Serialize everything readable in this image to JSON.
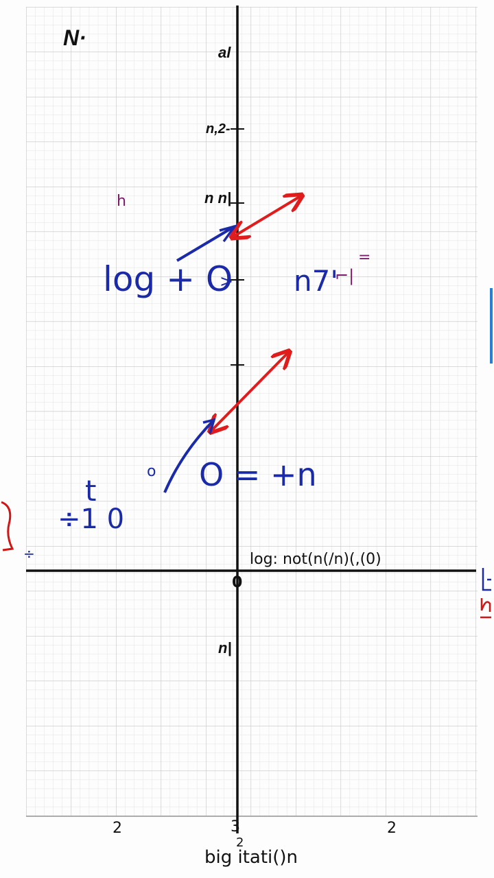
{
  "corner_label": "N·",
  "y_axis_labels": [
    {
      "text": "al",
      "row": "top"
    },
    {
      "text": "n,2-",
      "row": "upper"
    },
    {
      "text": "n n|",
      "row": "mid"
    },
    {
      "text": "n|",
      "row": "below-axis"
    }
  ],
  "annotations": {
    "marker_purple": "h",
    "log_o": "log + O",
    "angle_mark": ">",
    "n_term": "n7'",
    "n_bracket": "⌐|",
    "equals_small": "=",
    "o_plus_n": "O = +n",
    "small_circle": "o",
    "t_label": "t",
    "plus_ten": "÷1 0",
    "plus_small": "÷",
    "log_note": "log: not(n(/n)(,(0)",
    "origin": "0"
  },
  "x_axis_labels": {
    "left": "2",
    "center": "3",
    "right": "2",
    "sub": "2",
    "title": "big itati()n"
  },
  "colors": {
    "axis": "#111111",
    "grid_minor": "#dcdcdc",
    "grid_major": "#bdbdbd",
    "blue_ink": "#1a2aa8",
    "red_ink": "#e01c1c",
    "purple_ink": "#7a1a6a",
    "edge_red": "#d01616",
    "edge_blue": "#2a7fd4"
  }
}
